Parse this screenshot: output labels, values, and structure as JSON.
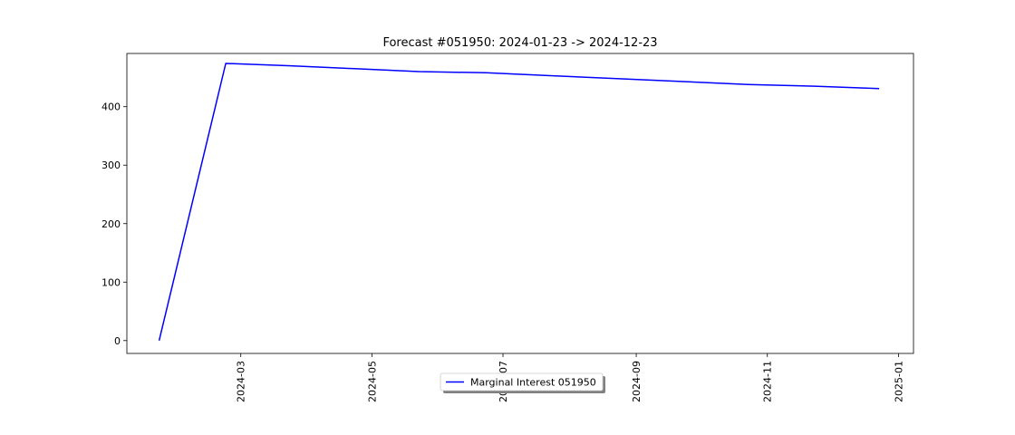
{
  "chart_data": {
    "type": "line",
    "title": "Forecast #051950: 2024-01-23 -> 2024-12-23",
    "xlabel": "",
    "ylabel": "",
    "x_axis_type": "date",
    "xlim": [
      "2024-01-08",
      "2025-01-08"
    ],
    "ylim": [
      -22,
      491
    ],
    "x_ticks": [
      "2024-03",
      "2024-05",
      "2024-07",
      "2024-09",
      "2024-11",
      "2025-01"
    ],
    "y_ticks": [
      0,
      100,
      200,
      300,
      400
    ],
    "grid": false,
    "legend": {
      "placement": "bottom-center",
      "entries": [
        "Marginal Interest 051950"
      ]
    },
    "series": [
      {
        "name": "Marginal Interest 051950",
        "color": "#0000ff",
        "x": [
          "2024-01-23",
          "2024-02-23",
          "2024-03-23",
          "2024-04-23",
          "2024-05-23",
          "2024-06-23",
          "2024-07-23",
          "2024-08-23",
          "2024-09-23",
          "2024-10-23",
          "2024-11-23",
          "2024-12-23"
        ],
        "y": [
          0,
          474,
          470,
          465,
          460,
          458,
          453,
          448,
          443,
          438,
          435,
          431
        ]
      }
    ]
  }
}
